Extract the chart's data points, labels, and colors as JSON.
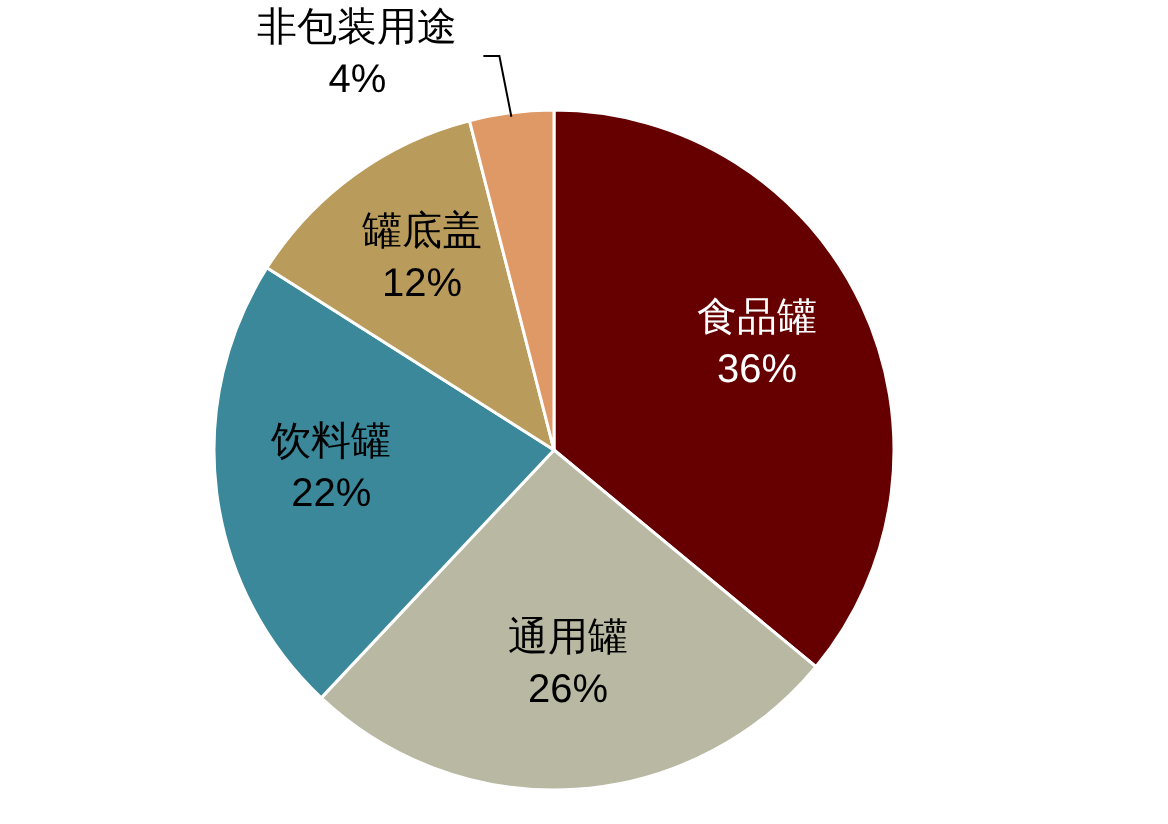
{
  "chart_data": {
    "type": "pie",
    "categories": [
      "食品罐",
      "通用罐",
      "饮料罐",
      "罐底盖",
      "非包装用途"
    ],
    "values": [
      36,
      26,
      22,
      12,
      4
    ],
    "value_labels": [
      "36%",
      "26%",
      "22%",
      "12%",
      "4%"
    ],
    "colors": [
      "#660000",
      "#b9b8a3",
      "#3b889b",
      "#b99c5c",
      "#df9966"
    ]
  }
}
